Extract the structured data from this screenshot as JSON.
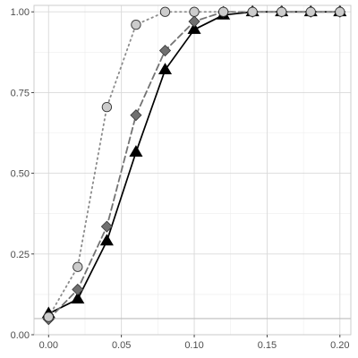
{
  "chart_data": {
    "type": "line",
    "title": "",
    "xlabel": "",
    "ylabel": "",
    "xlim": [
      -0.01,
      0.2075
    ],
    "ylim": [
      0,
      1.02
    ],
    "x_ticks": [
      0.0,
      0.05,
      0.1,
      0.15,
      0.2
    ],
    "x_tick_labels": [
      "0.00",
      "0.05",
      "0.10",
      "0.15",
      "0.20"
    ],
    "y_ticks": [
      0.0,
      0.25,
      0.5,
      0.75,
      1.0
    ],
    "y_tick_labels": [
      "0.00",
      "0.25",
      "0.50",
      "0.75",
      "1.00"
    ],
    "grid": true,
    "legend": "none",
    "reference_line": {
      "y": 0.05,
      "color": "#bdbdbd"
    },
    "x": [
      0.0,
      0.02,
      0.04,
      0.06,
      0.08,
      0.1,
      0.12,
      0.14,
      0.16,
      0.18,
      0.2
    ],
    "series": [
      {
        "marker": "triangle",
        "line_style": "solid",
        "line_color": "#000000",
        "fill_color": "#000000",
        "values": [
          0.065,
          0.11,
          0.29,
          0.565,
          0.82,
          0.945,
          0.99,
          1.0,
          1.0,
          1.0,
          1.0
        ]
      },
      {
        "marker": "diamond",
        "line_style": "dashed",
        "line_color": "#737373",
        "fill_color": "#707070",
        "values": [
          0.048,
          0.14,
          0.335,
          0.68,
          0.88,
          0.97,
          1.0,
          1.0,
          1.0,
          1.0,
          1.0
        ]
      },
      {
        "marker": "circle",
        "line_style": "dotted",
        "line_color": "#8c8c8c",
        "fill_color": "#cccccc",
        "values": [
          0.055,
          0.21,
          0.705,
          0.96,
          1.0,
          1.0,
          1.0,
          1.0,
          1.0,
          1.0,
          1.0
        ]
      }
    ]
  }
}
